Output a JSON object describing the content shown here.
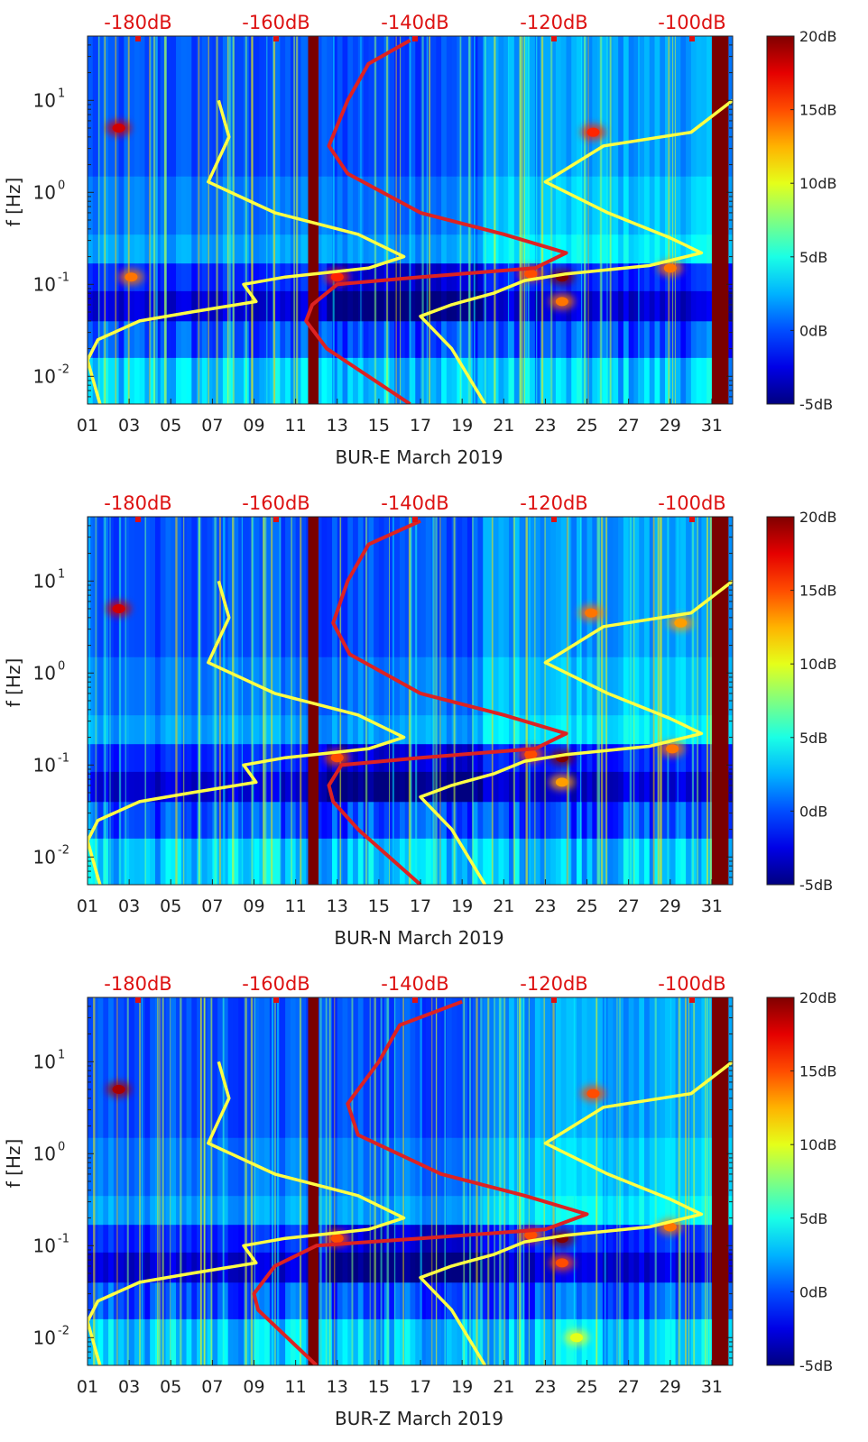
{
  "figure": {
    "colors": {
      "background_dark": "#00188a",
      "background_mid": "#1a5aff",
      "noise_model_line": "#ffff44",
      "psd_line": "#dd2222",
      "top_axis_text": "#dd1111",
      "gap_fill": "#7a0000",
      "axis_text": "#222222"
    }
  },
  "chart_data": [
    {
      "type": "heatmap",
      "title": "",
      "xlabel": "BUR-E March 2019",
      "ylabel": "f [Hz]",
      "x_day_range": [
        1,
        32
      ],
      "y_hz_range": [
        0.005,
        50
      ],
      "y_scale": "log",
      "x_ticks": [
        "01",
        "03",
        "05",
        "07",
        "09",
        "11",
        "13",
        "15",
        "17",
        "19",
        "21",
        "23",
        "25",
        "27",
        "29",
        "31"
      ],
      "y_ticks": [
        {
          "base": "10",
          "exp": "1",
          "value": 10
        },
        {
          "base": "10",
          "exp": "0",
          "value": 1
        },
        {
          "base": "10",
          "exp": "-1",
          "value": 0.1
        },
        {
          "base": "10",
          "exp": "-2",
          "value": 0.01
        }
      ],
      "top_axis_ticks": [
        "-180dB",
        "-160dB",
        "-140dB",
        "-120dB",
        "-100dB"
      ],
      "colorbar": {
        "min_db": -5,
        "max_db": 20,
        "ticks": [
          "20dB",
          "15dB",
          "10dB",
          "5dB",
          "0dB",
          "-5dB"
        ]
      },
      "data_gaps_days": [
        [
          11.6,
          12.1
        ],
        [
          31.0,
          31.8
        ]
      ],
      "hotspots": [
        {
          "day": 2.5,
          "hz": 5,
          "db": 18
        },
        {
          "day": 23.8,
          "hz": 0.12,
          "db": 20
        },
        {
          "day": 22.3,
          "hz": 0.13,
          "db": 15
        },
        {
          "day": 13.0,
          "hz": 0.12,
          "db": 16
        },
        {
          "day": 29.0,
          "hz": 0.15,
          "db": 14
        },
        {
          "day": 25.3,
          "hz": 4.5,
          "db": 16
        },
        {
          "day": 3.1,
          "hz": 0.12,
          "db": 14
        },
        {
          "day": 23.8,
          "hz": 0.065,
          "db": 14
        }
      ],
      "series": [
        {
          "name": "noise model (yellow)",
          "points": [
            [
              7.3,
              10
            ],
            [
              7.8,
              4
            ],
            [
              6.8,
              1.3
            ],
            [
              10,
              0.6
            ],
            [
              14,
              0.35
            ],
            [
              16.2,
              0.2
            ],
            [
              14.5,
              0.15
            ],
            [
              10.5,
              0.12
            ],
            [
              8.5,
              0.1
            ],
            [
              9.1,
              0.065
            ],
            [
              6,
              0.05
            ],
            [
              3.5,
              0.04
            ],
            [
              1.5,
              0.025
            ],
            [
              1,
              0.015
            ],
            [
              1.6,
              0.005
            ]
          ]
        },
        {
          "name": "noise model right (yellow)",
          "points": [
            [
              32,
              10
            ],
            [
              30,
              4.5
            ],
            [
              25.8,
              3.2
            ],
            [
              23,
              1.3
            ],
            [
              26,
              0.6
            ],
            [
              29,
              0.32
            ],
            [
              30.5,
              0.22
            ],
            [
              28,
              0.16
            ],
            [
              24,
              0.13
            ],
            [
              22,
              0.11
            ],
            [
              20.5,
              0.08
            ],
            [
              18.5,
              0.06
            ],
            [
              17,
              0.045
            ],
            [
              18.5,
              0.02
            ],
            [
              20.1,
              0.005
            ]
          ]
        },
        {
          "name": "PSD (red)",
          "points": [
            [
              16.5,
              45
            ],
            [
              14.5,
              25
            ],
            [
              13.5,
              10
            ],
            [
              12.6,
              3.2
            ],
            [
              13.5,
              1.6
            ],
            [
              17,
              0.6
            ],
            [
              21,
              0.35
            ],
            [
              24,
              0.22
            ],
            [
              22.5,
              0.15
            ],
            [
              17,
              0.12
            ],
            [
              13,
              0.1
            ],
            [
              11.8,
              0.06
            ],
            [
              11.5,
              0.04
            ],
            [
              12.5,
              0.02
            ],
            [
              16.5,
              0.005
            ]
          ]
        }
      ]
    },
    {
      "type": "heatmap",
      "title": "",
      "xlabel": "BUR-N March 2019",
      "ylabel": "f [Hz]",
      "x_day_range": [
        1,
        32
      ],
      "y_hz_range": [
        0.005,
        50
      ],
      "y_scale": "log",
      "x_ticks": [
        "01",
        "03",
        "05",
        "07",
        "09",
        "11",
        "13",
        "15",
        "17",
        "19",
        "21",
        "23",
        "25",
        "27",
        "29",
        "31"
      ],
      "y_ticks": [
        {
          "base": "10",
          "exp": "1",
          "value": 10
        },
        {
          "base": "10",
          "exp": "0",
          "value": 1
        },
        {
          "base": "10",
          "exp": "-1",
          "value": 0.1
        },
        {
          "base": "10",
          "exp": "-2",
          "value": 0.01
        }
      ],
      "top_axis_ticks": [
        "-180dB",
        "-160dB",
        "-140dB",
        "-120dB",
        "-100dB"
      ],
      "colorbar": {
        "min_db": -5,
        "max_db": 20,
        "ticks": [
          "20dB",
          "15dB",
          "10dB",
          "5dB",
          "0dB",
          "-5dB"
        ]
      },
      "data_gaps_days": [
        [
          11.6,
          12.1
        ],
        [
          31.0,
          31.8
        ]
      ],
      "hotspots": [
        {
          "day": 2.5,
          "hz": 5,
          "db": 18
        },
        {
          "day": 23.8,
          "hz": 0.12,
          "db": 20
        },
        {
          "day": 22.3,
          "hz": 0.13,
          "db": 15
        },
        {
          "day": 13.0,
          "hz": 0.12,
          "db": 15
        },
        {
          "day": 29.1,
          "hz": 0.15,
          "db": 14
        },
        {
          "day": 25.2,
          "hz": 4.5,
          "db": 14
        },
        {
          "day": 29.5,
          "hz": 3.5,
          "db": 13
        },
        {
          "day": 23.8,
          "hz": 0.065,
          "db": 13
        }
      ],
      "series": [
        {
          "name": "noise model (yellow)",
          "points": [
            [
              7.3,
              10
            ],
            [
              7.8,
              4
            ],
            [
              6.8,
              1.3
            ],
            [
              10,
              0.6
            ],
            [
              14,
              0.35
            ],
            [
              16.2,
              0.2
            ],
            [
              14.5,
              0.15
            ],
            [
              10.5,
              0.12
            ],
            [
              8.5,
              0.1
            ],
            [
              9.1,
              0.065
            ],
            [
              6,
              0.05
            ],
            [
              3.5,
              0.04
            ],
            [
              1.5,
              0.025
            ],
            [
              1,
              0.015
            ],
            [
              1.6,
              0.005
            ]
          ]
        },
        {
          "name": "noise model right (yellow)",
          "points": [
            [
              32,
              10
            ],
            [
              30,
              4.5
            ],
            [
              25.8,
              3.2
            ],
            [
              23,
              1.3
            ],
            [
              26,
              0.6
            ],
            [
              29,
              0.32
            ],
            [
              30.5,
              0.22
            ],
            [
              28,
              0.16
            ],
            [
              24,
              0.13
            ],
            [
              22,
              0.11
            ],
            [
              20.5,
              0.08
            ],
            [
              18.5,
              0.06
            ],
            [
              17,
              0.045
            ],
            [
              18.5,
              0.02
            ],
            [
              20.1,
              0.005
            ]
          ]
        },
        {
          "name": "PSD (red)",
          "points": [
            [
              17,
              45
            ],
            [
              14.5,
              25
            ],
            [
              13.5,
              10
            ],
            [
              12.8,
              3.5
            ],
            [
              13.6,
              1.6
            ],
            [
              17,
              0.6
            ],
            [
              21,
              0.35
            ],
            [
              24,
              0.22
            ],
            [
              22.5,
              0.15
            ],
            [
              17,
              0.12
            ],
            [
              13.2,
              0.1
            ],
            [
              12.6,
              0.06
            ],
            [
              12.8,
              0.04
            ],
            [
              14,
              0.02
            ],
            [
              17,
              0.005
            ]
          ]
        }
      ]
    },
    {
      "type": "heatmap",
      "title": "",
      "xlabel": "BUR-Z March 2019",
      "ylabel": "f [Hz]",
      "x_day_range": [
        1,
        32
      ],
      "y_hz_range": [
        0.005,
        50
      ],
      "y_scale": "log",
      "x_ticks": [
        "01",
        "03",
        "05",
        "07",
        "09",
        "11",
        "13",
        "15",
        "17",
        "19",
        "21",
        "23",
        "25",
        "27",
        "29",
        "31"
      ],
      "y_ticks": [
        {
          "base": "10",
          "exp": "1",
          "value": 10
        },
        {
          "base": "10",
          "exp": "0",
          "value": 1
        },
        {
          "base": "10",
          "exp": "-1",
          "value": 0.1
        },
        {
          "base": "10",
          "exp": "-2",
          "value": 0.01
        }
      ],
      "top_axis_ticks": [
        "-180dB",
        "-160dB",
        "-140dB",
        "-120dB",
        "-100dB"
      ],
      "colorbar": {
        "min_db": -5,
        "max_db": 20,
        "ticks": [
          "20dB",
          "15dB",
          "10dB",
          "5dB",
          "0dB",
          "-5dB"
        ]
      },
      "data_gaps_days": [
        [
          11.6,
          12.1
        ],
        [
          31.0,
          31.8
        ]
      ],
      "hotspots": [
        {
          "day": 2.5,
          "hz": 5,
          "db": 19
        },
        {
          "day": 23.8,
          "hz": 0.12,
          "db": 20
        },
        {
          "day": 22.3,
          "hz": 0.13,
          "db": 15
        },
        {
          "day": 13.0,
          "hz": 0.12,
          "db": 15
        },
        {
          "day": 29.0,
          "hz": 0.16,
          "db": 14
        },
        {
          "day": 25.3,
          "hz": 4.5,
          "db": 15
        },
        {
          "day": 23.8,
          "hz": 0.065,
          "db": 15
        },
        {
          "day": 24.5,
          "hz": 0.01,
          "db": 10
        }
      ],
      "series": [
        {
          "name": "noise model (yellow)",
          "points": [
            [
              7.3,
              10
            ],
            [
              7.8,
              4
            ],
            [
              6.8,
              1.3
            ],
            [
              10,
              0.6
            ],
            [
              14,
              0.35
            ],
            [
              16.2,
              0.2
            ],
            [
              14.5,
              0.15
            ],
            [
              10.5,
              0.12
            ],
            [
              8.5,
              0.1
            ],
            [
              9.1,
              0.065
            ],
            [
              6,
              0.05
            ],
            [
              3.5,
              0.04
            ],
            [
              1.5,
              0.025
            ],
            [
              1,
              0.015
            ],
            [
              1.6,
              0.005
            ]
          ]
        },
        {
          "name": "noise model right (yellow)",
          "points": [
            [
              32,
              10
            ],
            [
              30,
              4.5
            ],
            [
              25.8,
              3.2
            ],
            [
              23,
              1.3
            ],
            [
              26,
              0.6
            ],
            [
              29,
              0.32
            ],
            [
              30.5,
              0.22
            ],
            [
              28,
              0.16
            ],
            [
              24,
              0.13
            ],
            [
              22,
              0.11
            ],
            [
              20.5,
              0.08
            ],
            [
              18.5,
              0.06
            ],
            [
              17,
              0.045
            ],
            [
              18.5,
              0.02
            ],
            [
              20.1,
              0.005
            ]
          ]
        },
        {
          "name": "PSD (red)",
          "points": [
            [
              19,
              45
            ],
            [
              16,
              25
            ],
            [
              15,
              10
            ],
            [
              13.5,
              3.5
            ],
            [
              14,
              1.6
            ],
            [
              18,
              0.6
            ],
            [
              22,
              0.35
            ],
            [
              25,
              0.22
            ],
            [
              23,
              0.15
            ],
            [
              17,
              0.12
            ],
            [
              12,
              0.1
            ],
            [
              10,
              0.06
            ],
            [
              9,
              0.03
            ],
            [
              9.2,
              0.02
            ],
            [
              12,
              0.005
            ]
          ]
        }
      ]
    }
  ]
}
